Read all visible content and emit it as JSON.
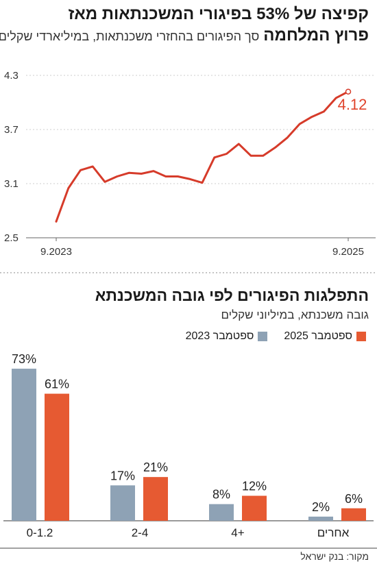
{
  "header": {
    "title_line1": "קפיצה של 53% בפיגורי המשכנתאות מאז",
    "title_line2_bold": "פרוץ המלחמה",
    "title_line2_sub": "סך הפיגורים בהחזרי משכנתאות, במיליארדי שקלים"
  },
  "section2": {
    "title": "התפלגות הפיגורים לפי גובה המשכנתא",
    "subtitle": "גובה משכנתא, במיליוני שקלים"
  },
  "legend": {
    "items": [
      {
        "label": "ספטמבר 2025",
        "color": "#e65a32"
      },
      {
        "label": "ספטמבר 2023",
        "color": "#8ea2b5"
      }
    ]
  },
  "source": "מקור: בנק ישראל",
  "colors": {
    "line": "#d63b2a",
    "bar2023": "#8ea2b5",
    "bar2025": "#e65a32",
    "grid": "#cccccc"
  },
  "chart_data": [
    {
      "type": "line",
      "x_start_label": "9.2023",
      "x_end_label": "9.2025",
      "yticks": [
        "2.5",
        "3.1",
        "3.7",
        "4.3"
      ],
      "ylim": [
        2.5,
        4.3
      ],
      "grid": true,
      "end_label": "4.12",
      "values": [
        2.68,
        3.05,
        3.25,
        3.29,
        3.12,
        3.18,
        3.22,
        3.21,
        3.24,
        3.18,
        3.18,
        3.15,
        3.11,
        3.39,
        3.43,
        3.54,
        3.41,
        3.41,
        3.5,
        3.61,
        3.76,
        3.84,
        3.9,
        4.05,
        4.12
      ]
    },
    {
      "type": "bar",
      "categories": [
        "0-1.2",
        "2-4",
        "4+",
        "אחרים"
      ],
      "series": [
        {
          "name": "ספטמבר 2023",
          "values": [
            73,
            17,
            8,
            2
          ],
          "labels": [
            "73%",
            "17%",
            "8%",
            "2%"
          ]
        },
        {
          "name": "ספטמבר 2025",
          "values": [
            61,
            21,
            12,
            6
          ],
          "labels": [
            "61%",
            "21%",
            "12%",
            "6%"
          ]
        }
      ]
    }
  ]
}
